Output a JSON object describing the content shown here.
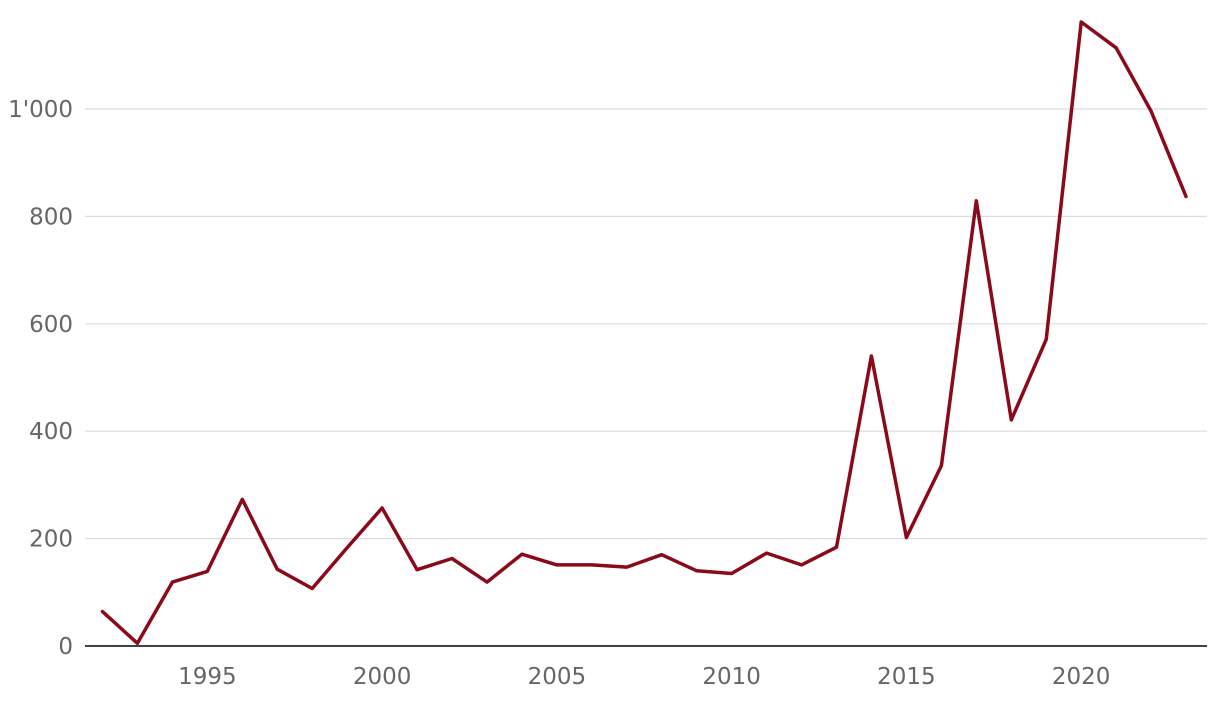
{
  "chart_data": {
    "type": "line",
    "title": "",
    "xlabel": "",
    "ylabel": "",
    "xlim": [
      1991.5,
      2023.6
    ],
    "ylim": [
      0,
      1200
    ],
    "grid": true,
    "line_color": "#8b0a1a",
    "y_ticks": [
      0,
      200,
      400,
      600,
      800,
      1000
    ],
    "y_tick_labels": [
      "0",
      "200",
      "400",
      "600",
      "800",
      "1'000"
    ],
    "x_ticks": [
      1995,
      2000,
      2005,
      2010,
      2015,
      2020
    ],
    "x_tick_labels": [
      "1995",
      "2000",
      "2005",
      "2010",
      "2015",
      "2020"
    ],
    "series": [
      {
        "x": [
          1992,
          1993,
          1994,
          1995,
          1996,
          1997,
          1998,
          1999,
          2000,
          2001,
          2002,
          2003,
          2004,
          2005,
          2006,
          2007,
          2008,
          2009,
          2010,
          2011,
          2012,
          2013,
          2014,
          2015,
          2016,
          2017,
          2018,
          2019,
          2020,
          2021,
          2022,
          2023
        ],
        "values": [
          64,
          5,
          119,
          139,
          273,
          143,
          107,
          183,
          257,
          142,
          163,
          119,
          171,
          151,
          151,
          147,
          170,
          140,
          135,
          173,
          151,
          184,
          540,
          202,
          336,
          829,
          421,
          571,
          1162,
          1114,
          996,
          837
        ]
      }
    ]
  }
}
